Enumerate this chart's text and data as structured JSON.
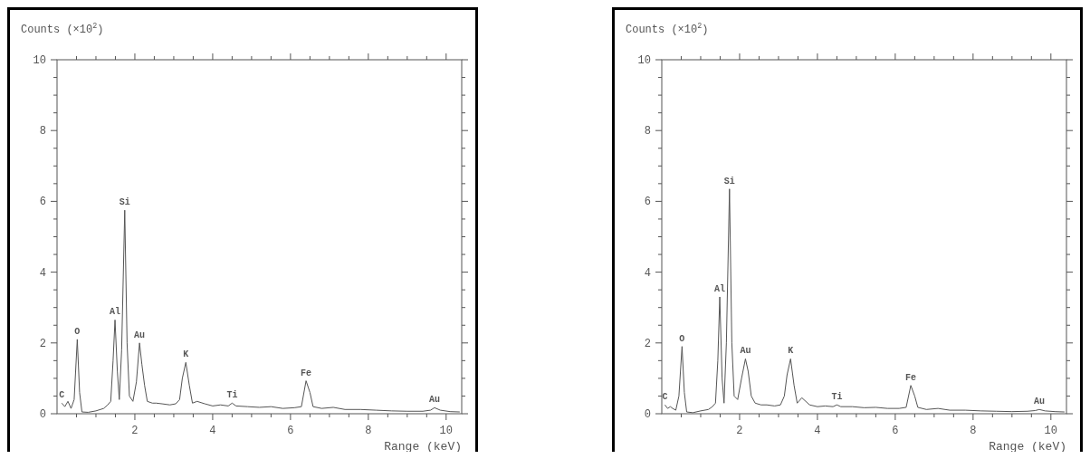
{
  "chart_data": [
    {
      "type": "line",
      "ylabel": "Counts (×10$^{2}$)",
      "xlabel": "Range (keV)",
      "xlim": [
        0,
        10.4
      ],
      "ylim": [
        0,
        10
      ],
      "xticks": [
        {
          "value": 0.5,
          "label": null
        },
        {
          "value": 1,
          "label": null
        },
        {
          "value": 1.5,
          "label": null
        },
        2,
        {
          "value": 2.5,
          "label": null
        },
        {
          "value": 3,
          "label": null
        },
        {
          "value": 3.5,
          "label": null
        },
        4,
        {
          "value": 4.5,
          "label": null
        },
        {
          "value": 5,
          "label": null
        },
        {
          "value": 5.5,
          "label": null
        },
        6,
        {
          "value": 6.5,
          "label": null
        },
        {
          "value": 7,
          "label": null
        },
        {
          "value": 7.5,
          "label": null
        },
        8,
        {
          "value": 8.5,
          "label": null
        },
        {
          "value": 9,
          "label": null
        },
        {
          "value": 9.5,
          "label": null
        },
        10
      ],
      "yticks": [
        0,
        {
          "value": 0.5,
          "label": null
        },
        {
          "value": 1,
          "label": null
        },
        {
          "value": 1.5,
          "label": null
        },
        2,
        {
          "value": 2.5,
          "label": null
        },
        {
          "value": 3,
          "label": null
        },
        {
          "value": 3.5,
          "label": null
        },
        4,
        {
          "value": 4.5,
          "label": null
        },
        {
          "value": 5,
          "label": null
        },
        {
          "value": 5.5,
          "label": null
        },
        6,
        {
          "value": 6.5,
          "label": null
        },
        {
          "value": 7,
          "label": null
        },
        {
          "value": 7.5,
          "label": null
        },
        8,
        {
          "value": 8.5,
          "label": null
        },
        {
          "value": 9,
          "label": null
        },
        {
          "value": 9.5,
          "label": null
        },
        10
      ],
      "series": [
        {
          "color": "#555555",
          "x": [
            0.12,
            0.2,
            0.28,
            0.36,
            0.44,
            0.52,
            0.58,
            0.64,
            0.8,
            1.0,
            1.2,
            1.3,
            1.38,
            1.44,
            1.49,
            1.55,
            1.6,
            1.66,
            1.74,
            1.8,
            1.86,
            1.95,
            2.04,
            2.12,
            2.18,
            2.25,
            2.32,
            2.45,
            2.55,
            2.7,
            2.9,
            3.05,
            3.15,
            3.22,
            3.31,
            3.4,
            3.48,
            3.6,
            3.8,
            4.0,
            4.2,
            4.4,
            4.5,
            4.6,
            4.9,
            5.2,
            5.5,
            5.8,
            6.1,
            6.28,
            6.4,
            6.5,
            6.58,
            6.8,
            7.1,
            7.4,
            7.8,
            8.2,
            8.6,
            9.0,
            9.4,
            9.6,
            9.7,
            9.85,
            10.1,
            10.35
          ],
          "values": [
            0.3,
            0.2,
            0.35,
            0.15,
            0.4,
            2.1,
            0.6,
            0.05,
            0.04,
            0.08,
            0.15,
            0.25,
            0.35,
            1.5,
            2.65,
            1.2,
            0.4,
            1.8,
            5.75,
            2.0,
            0.5,
            0.35,
            0.9,
            2.0,
            1.4,
            0.8,
            0.35,
            0.3,
            0.3,
            0.28,
            0.25,
            0.28,
            0.4,
            1.0,
            1.45,
            0.8,
            0.3,
            0.35,
            0.28,
            0.22,
            0.25,
            0.22,
            0.3,
            0.22,
            0.2,
            0.18,
            0.2,
            0.15,
            0.17,
            0.2,
            0.93,
            0.6,
            0.2,
            0.15,
            0.18,
            0.12,
            0.12,
            0.1,
            0.08,
            0.07,
            0.07,
            0.1,
            0.17,
            0.1,
            0.06,
            0.05
          ]
        }
      ],
      "annotations": [
        {
          "text": "C",
          "x": 0.12,
          "y": 0.3
        },
        {
          "text": "O",
          "x": 0.52,
          "y": 2.1
        },
        {
          "text": "Al",
          "x": 1.49,
          "y": 2.65
        },
        {
          "text": "Si",
          "x": 1.74,
          "y": 5.75
        },
        {
          "text": "Au",
          "x": 2.12,
          "y": 2.0
        },
        {
          "text": "K",
          "x": 3.31,
          "y": 1.45
        },
        {
          "text": "Ti",
          "x": 4.5,
          "y": 0.3
        },
        {
          "text": "Fe",
          "x": 6.4,
          "y": 0.93
        },
        {
          "text": "Au",
          "x": 9.7,
          "y": 0.17
        }
      ]
    },
    {
      "type": "line",
      "ylabel": "Counts (×10$^{2}$)",
      "xlabel": "Range (keV)",
      "xlim": [
        0,
        10.4
      ],
      "ylim": [
        0,
        10
      ],
      "xticks": [
        {
          "value": 0.5,
          "label": null
        },
        {
          "value": 1,
          "label": null
        },
        {
          "value": 1.5,
          "label": null
        },
        2,
        {
          "value": 2.5,
          "label": null
        },
        {
          "value": 3,
          "label": null
        },
        {
          "value": 3.5,
          "label": null
        },
        4,
        {
          "value": 4.5,
          "label": null
        },
        {
          "value": 5,
          "label": null
        },
        {
          "value": 5.5,
          "label": null
        },
        6,
        {
          "value": 6.5,
          "label": null
        },
        {
          "value": 7,
          "label": null
        },
        {
          "value": 7.5,
          "label": null
        },
        8,
        {
          "value": 8.5,
          "label": null
        },
        {
          "value": 9,
          "label": null
        },
        {
          "value": 9.5,
          "label": null
        },
        10
      ],
      "yticks": [
        0,
        {
          "value": 0.5,
          "label": null
        },
        {
          "value": 1,
          "label": null
        },
        {
          "value": 1.5,
          "label": null
        },
        2,
        {
          "value": 2.5,
          "label": null
        },
        {
          "value": 3,
          "label": null
        },
        {
          "value": 3.5,
          "label": null
        },
        4,
        {
          "value": 4.5,
          "label": null
        },
        {
          "value": 5,
          "label": null
        },
        {
          "value": 5.5,
          "label": null
        },
        6,
        {
          "value": 6.5,
          "label": null
        },
        {
          "value": 7,
          "label": null
        },
        {
          "value": 7.5,
          "label": null
        },
        8,
        {
          "value": 8.5,
          "label": null
        },
        {
          "value": 9,
          "label": null
        },
        {
          "value": 9.5,
          "label": null
        },
        10
      ],
      "series": [
        {
          "color": "#555555",
          "x": [
            0.08,
            0.15,
            0.22,
            0.28,
            0.36,
            0.44,
            0.52,
            0.58,
            0.64,
            0.8,
            1.0,
            1.2,
            1.3,
            1.38,
            1.44,
            1.49,
            1.55,
            1.6,
            1.66,
            1.74,
            1.8,
            1.86,
            1.95,
            2.05,
            2.15,
            2.22,
            2.3,
            2.4,
            2.55,
            2.7,
            2.9,
            3.05,
            3.15,
            3.22,
            3.31,
            3.4,
            3.48,
            3.6,
            3.8,
            4.0,
            4.2,
            4.4,
            4.5,
            4.6,
            4.9,
            5.2,
            5.5,
            5.8,
            6.1,
            6.28,
            6.4,
            6.5,
            6.58,
            6.8,
            7.1,
            7.4,
            7.8,
            8.2,
            8.6,
            9.0,
            9.4,
            9.6,
            9.7,
            9.85,
            10.1,
            10.35
          ],
          "values": [
            0.25,
            0.15,
            0.2,
            0.15,
            0.1,
            0.5,
            1.9,
            0.6,
            0.05,
            0.03,
            0.08,
            0.12,
            0.2,
            0.3,
            1.5,
            3.3,
            1.0,
            0.3,
            2.0,
            6.35,
            2.0,
            0.5,
            0.4,
            1.0,
            1.55,
            1.2,
            0.5,
            0.3,
            0.25,
            0.25,
            0.22,
            0.25,
            0.5,
            1.1,
            1.55,
            0.8,
            0.3,
            0.45,
            0.25,
            0.2,
            0.22,
            0.2,
            0.25,
            0.2,
            0.2,
            0.17,
            0.18,
            0.15,
            0.15,
            0.18,
            0.8,
            0.5,
            0.18,
            0.12,
            0.15,
            0.1,
            0.1,
            0.08,
            0.07,
            0.06,
            0.07,
            0.09,
            0.12,
            0.08,
            0.06,
            0.05
          ]
        }
      ],
      "annotations": [
        {
          "text": "C",
          "x": 0.08,
          "y": 0.25
        },
        {
          "text": "O",
          "x": 0.52,
          "y": 1.9
        },
        {
          "text": "Al",
          "x": 1.49,
          "y": 3.3
        },
        {
          "text": "Si",
          "x": 1.74,
          "y": 6.35
        },
        {
          "text": "Au",
          "x": 2.15,
          "y": 1.55
        },
        {
          "text": "K",
          "x": 3.31,
          "y": 1.55
        },
        {
          "text": "Ti",
          "x": 4.5,
          "y": 0.25
        },
        {
          "text": "Fe",
          "x": 6.4,
          "y": 0.8
        },
        {
          "text": "Au",
          "x": 9.7,
          "y": 0.12
        }
      ]
    }
  ]
}
